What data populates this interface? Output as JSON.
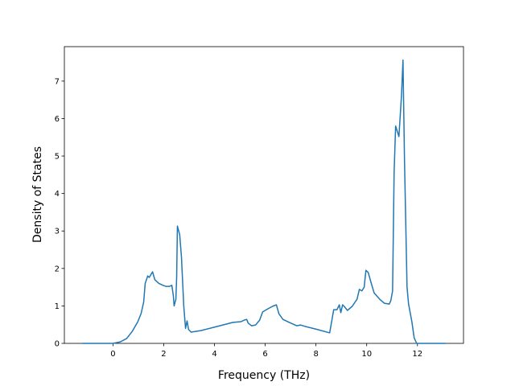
{
  "chart_data": {
    "type": "line",
    "xlabel": "Frequency (THz)",
    "ylabel": "Density of States",
    "xlim": [
      -1.915,
      13.815
    ],
    "ylim": [
      0,
      7.92
    ],
    "xticks": [
      0,
      2,
      4,
      6,
      8,
      10,
      12
    ],
    "yticks": [
      0,
      1,
      2,
      3,
      4,
      5,
      6,
      7
    ],
    "series": [
      {
        "color": "#1f77b4",
        "x": [
          -1.2,
          0,
          0.29,
          0.54,
          0.76,
          0.98,
          1.11,
          1.21,
          1.27,
          1.37,
          1.43,
          1.56,
          1.65,
          1.81,
          1.97,
          2.1,
          2.22,
          2.32,
          2.38,
          2.41,
          2.48,
          2.51,
          2.54,
          2.63,
          2.7,
          2.79,
          2.86,
          2.92,
          2.98,
          3.08,
          3.46,
          4.1,
          4.73,
          5.05,
          5.17,
          5.27,
          5.33,
          5.46,
          5.62,
          5.78,
          5.9,
          6.1,
          6.29,
          6.44,
          6.54,
          6.7,
          6.95,
          7.24,
          7.4,
          7.59,
          8.06,
          8.54,
          8.7,
          8.83,
          8.92,
          8.98,
          9.05,
          9.11,
          9.24,
          9.43,
          9.62,
          9.71,
          9.81,
          9.9,
          9.97,
          10.06,
          10.16,
          10.29,
          10.51,
          10.7,
          10.89,
          10.95,
          11.02,
          11.08,
          11.14,
          11.27,
          11.37,
          11.43,
          11.49,
          11.59,
          11.65,
          11.78,
          11.87,
          11.97,
          13.1
        ],
        "values": [
          0,
          0,
          0.04,
          0.13,
          0.32,
          0.58,
          0.8,
          1.1,
          1.6,
          1.8,
          1.76,
          1.91,
          1.7,
          1.6,
          1.55,
          1.52,
          1.52,
          1.55,
          1.27,
          1.0,
          1.18,
          1.76,
          3.13,
          2.9,
          2.3,
          1.0,
          0.4,
          0.6,
          0.37,
          0.3,
          0.34,
          0.45,
          0.56,
          0.58,
          0.62,
          0.64,
          0.54,
          0.47,
          0.49,
          0.62,
          0.84,
          0.92,
          0.99,
          1.03,
          0.79,
          0.64,
          0.56,
          0.47,
          0.49,
          0.45,
          0.37,
          0.28,
          0.9,
          0.9,
          1.03,
          0.82,
          1.03,
          0.99,
          0.88,
          0.99,
          1.18,
          1.44,
          1.4,
          1.5,
          1.95,
          1.89,
          1.65,
          1.35,
          1.18,
          1.07,
          1.05,
          1.14,
          1.4,
          4.55,
          5.8,
          5.52,
          6.6,
          7.56,
          4.87,
          1.5,
          1.05,
          0.58,
          0.15,
          0,
          0
        ]
      }
    ]
  }
}
